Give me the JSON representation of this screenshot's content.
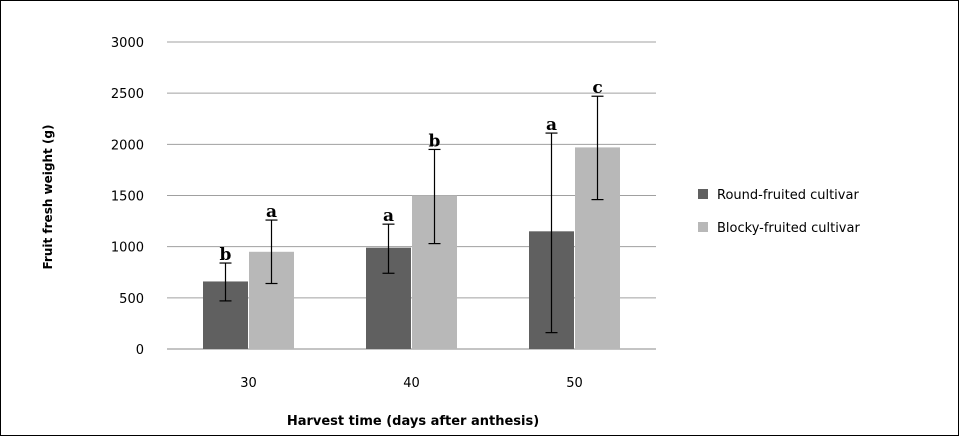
{
  "chart_data": {
    "type": "bar",
    "title": "",
    "xlabel": "Harvest time (days after anthesis)",
    "ylabel": "Fruit fresh weight (g)",
    "categories": [
      "30",
      "40",
      "50"
    ],
    "ylim": [
      0,
      3000
    ],
    "yticks": [
      0,
      500,
      1000,
      1500,
      2000,
      2500,
      3000
    ],
    "grid": true,
    "legend_position": "right",
    "series": [
      {
        "name": "Round-fruited cultivar",
        "color": "#606060",
        "values": [
          660,
          990,
          1150
        ],
        "error_low": [
          470,
          740,
          160
        ],
        "error_high": [
          840,
          1220,
          2110
        ],
        "letters": [
          "b",
          "a",
          "a"
        ]
      },
      {
        "name": "Blocky-fruited cultivar",
        "color": "#b8b8b8",
        "values": [
          950,
          1500,
          1970
        ],
        "error_low": [
          640,
          1030,
          1460
        ],
        "error_high": [
          1260,
          1950,
          2470
        ],
        "letters": [
          "a",
          "b",
          "c"
        ]
      }
    ]
  }
}
